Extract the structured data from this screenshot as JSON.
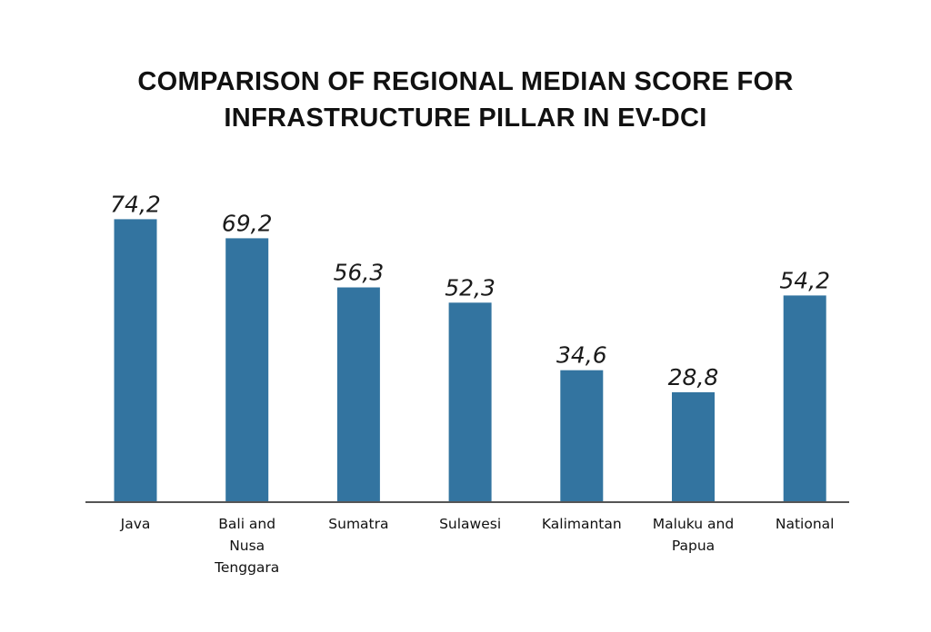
{
  "chart_data": {
    "type": "bar",
    "title_lines": [
      "COMPARISON OF REGIONAL MEDIAN SCORE FOR",
      "INFRASTRUCTURE PILLAR IN EV-DCI"
    ],
    "categories": [
      [
        "Java"
      ],
      [
        "Bali and",
        "Nusa",
        "Tenggara"
      ],
      [
        "Sumatra"
      ],
      [
        "Sulawesi"
      ],
      [
        "Kalimantan"
      ],
      [
        "Maluku and",
        "Papua"
      ],
      [
        "National"
      ]
    ],
    "values": [
      74.2,
      69.2,
      56.3,
      52.3,
      34.6,
      28.8,
      54.2
    ],
    "value_labels": [
      "74,2",
      "69,2",
      "56,3",
      "52,3",
      "34,6",
      "28,8",
      "54,2"
    ],
    "ylim": [
      0,
      100
    ],
    "grid": false,
    "bar_color": "#3374a0"
  }
}
